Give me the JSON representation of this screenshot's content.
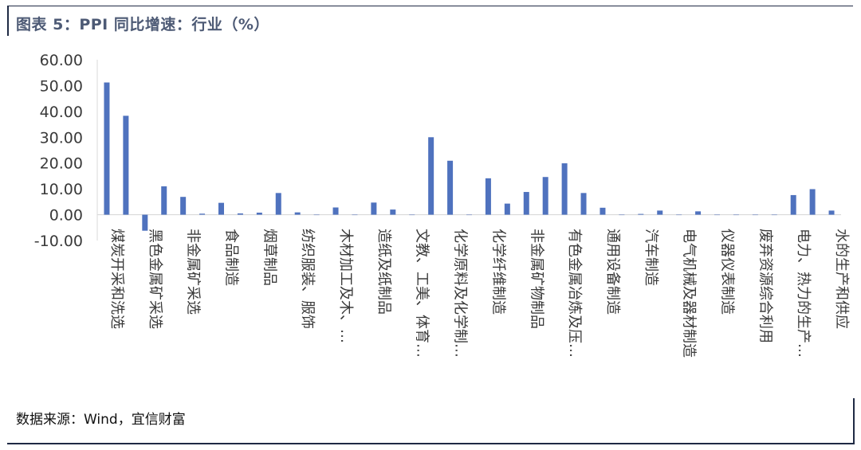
{
  "title": "图表 5：PPI 同比增速：行业（%）",
  "source": "数据来源：Wind，宜信财富",
  "colors": {
    "bar": "#4f72be",
    "axis": "#d9d9d9",
    "text": "#3a3a3a"
  },
  "chart_data": {
    "type": "bar",
    "title": "图表 5：PPI 同比增速：行业（%）",
    "xlabel": "",
    "ylabel": "",
    "ylim": [
      -10,
      60
    ],
    "yticks": [
      "60.00",
      "50.00",
      "40.00",
      "30.00",
      "20.00",
      "10.00",
      "0.00",
      "-10.00"
    ],
    "grid": false,
    "legend": "none",
    "categories": [
      "煤炭开采和洗选",
      "",
      "黑色金属矿采选",
      "",
      "非金属矿采选",
      "",
      "食品制造",
      "",
      "烟草制品",
      "",
      "纺织服装、服饰",
      "",
      "木材加工及木、…",
      "",
      "造纸及纸制品",
      "",
      "文教、工美、体育…",
      "",
      "化学原料及化学制…",
      "",
      "化学纤维制造",
      "",
      "非金属矿物制品",
      "",
      "有色金属冶炼及压…",
      "",
      "通用设备制造",
      "",
      "汽车制造",
      "",
      "电气机械及器材制造",
      "",
      "仪器仪表制造",
      "",
      "废弃资源综合利用",
      "",
      "电力、热力的生产…",
      "",
      "水的生产和供应"
    ],
    "values": [
      51.2,
      38.3,
      -6.2,
      11.0,
      6.9,
      0.4,
      4.6,
      0.5,
      0.8,
      8.4,
      0.9,
      0.0,
      2.8,
      0.0,
      4.7,
      2.0,
      0.0,
      30.0,
      20.9,
      0.0,
      14.1,
      4.3,
      8.8,
      14.6,
      19.9,
      8.4,
      2.7,
      0.0,
      0.3,
      1.6,
      0.0,
      1.3,
      0.0,
      0.0,
      0.0,
      0.0,
      7.6,
      9.9,
      1.6
    ]
  }
}
